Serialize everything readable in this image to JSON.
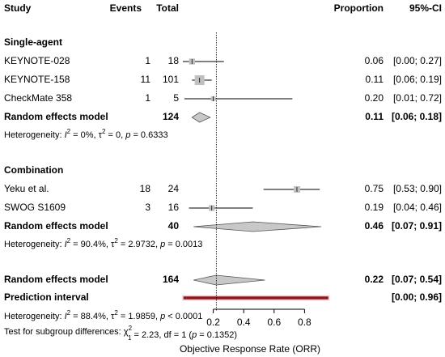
{
  "chart_data": {
    "type": "forest",
    "columns": [
      "Study",
      "Events",
      "Total",
      "Proportion",
      "95%-CI"
    ],
    "xlim": [
      0,
      1
    ],
    "xticks": [
      0.2,
      0.4,
      0.6,
      0.8
    ],
    "xlabel": "Objective Response Rate (ORR)",
    "square_color": "#c0c0c0",
    "diamond_color": "#c8c8c8",
    "prediction_color": "#8b1a1a",
    "groups": [
      {
        "name": "Single-agent",
        "studies": [
          {
            "name": "KEYNOTE-028",
            "events": 1,
            "total": 18,
            "proportion": 0.06,
            "ci": [
              0.0,
              0.27
            ],
            "ci_label": "[0.00; 0.27]"
          },
          {
            "name": "KEYNOTE-158",
            "events": 11,
            "total": 101,
            "proportion": 0.11,
            "ci": [
              0.06,
              0.19
            ],
            "ci_label": "[0.06; 0.19]"
          },
          {
            "name": "CheckMate 358",
            "events": 1,
            "total": 5,
            "proportion": 0.2,
            "proportion_label": "0.20",
            "ci": [
              0.01,
              0.72
            ],
            "ci_label": "[0.01; 0.72]"
          }
        ],
        "model": {
          "name": "Random effects model",
          "total": 124,
          "proportion": 0.11,
          "ci": [
            0.06,
            0.18
          ],
          "ci_label": "[0.06; 0.18]"
        },
        "heterogeneity": [
          {
            "text": "Heterogeneity: "
          },
          {
            "text": "I",
            "style": "italic"
          },
          {
            "text": "2",
            "style": "sup"
          },
          {
            "text": " = 0%, "
          },
          {
            "text": "τ"
          },
          {
            "text": "2",
            "style": "sup"
          },
          {
            "text": " = 0, "
          },
          {
            "text": "p",
            "style": "italic"
          },
          {
            "text": " = 0.6333"
          }
        ]
      },
      {
        "name": "Combination",
        "studies": [
          {
            "name": "Yeku et al.",
            "events": 18,
            "total": 24,
            "proportion": 0.75,
            "ci": [
              0.53,
              0.9
            ],
            "ci_label": "[0.53; 0.90]"
          },
          {
            "name": "SWOG S1609",
            "events": 3,
            "total": 16,
            "proportion": 0.19,
            "ci": [
              0.04,
              0.46
            ],
            "ci_label": "[0.04; 0.46]"
          }
        ],
        "model": {
          "name": "Random effects model",
          "total": 40,
          "proportion": 0.46,
          "ci": [
            0.07,
            0.91
          ],
          "ci_label": "[0.07; 0.91]"
        },
        "heterogeneity": [
          {
            "text": "Heterogeneity: "
          },
          {
            "text": "I",
            "style": "italic"
          },
          {
            "text": "2",
            "style": "sup"
          },
          {
            "text": " = 90.4%, "
          },
          {
            "text": "τ"
          },
          {
            "text": "2",
            "style": "sup"
          },
          {
            "text": " = 2.9732, "
          },
          {
            "text": "p",
            "style": "italic"
          },
          {
            "text": " = 0.0013"
          }
        ]
      }
    ],
    "overall": {
      "name": "Random effects model",
      "total": 164,
      "proportion": 0.22,
      "ci": [
        0.07,
        0.54
      ],
      "ci_label": "[0.07; 0.54]"
    },
    "prediction": {
      "name": "Prediction interval",
      "ci": [
        0.0,
        0.96
      ],
      "ci_label": "[0.00; 0.96]"
    },
    "heterogeneity": [
      {
        "text": "Heterogeneity: "
      },
      {
        "text": "I",
        "style": "italic"
      },
      {
        "text": "2",
        "style": "sup"
      },
      {
        "text": " = 88.4%, "
      },
      {
        "text": "τ"
      },
      {
        "text": "2",
        "style": "sup"
      },
      {
        "text": " = 1.9859, "
      },
      {
        "text": "p",
        "style": "italic"
      },
      {
        "text": " < 0.0001"
      }
    ],
    "subgroup_test": [
      {
        "text": "Test for subgroup differences: "
      },
      {
        "text": "χ"
      },
      {
        "text": "2",
        "style": "sup"
      },
      {
        "text": "1",
        "style": "sub"
      },
      {
        "text": " = 2.23, df = 1 ("
      },
      {
        "text": "p",
        "style": "italic"
      },
      {
        "text": " = 0.1352)"
      }
    ]
  }
}
